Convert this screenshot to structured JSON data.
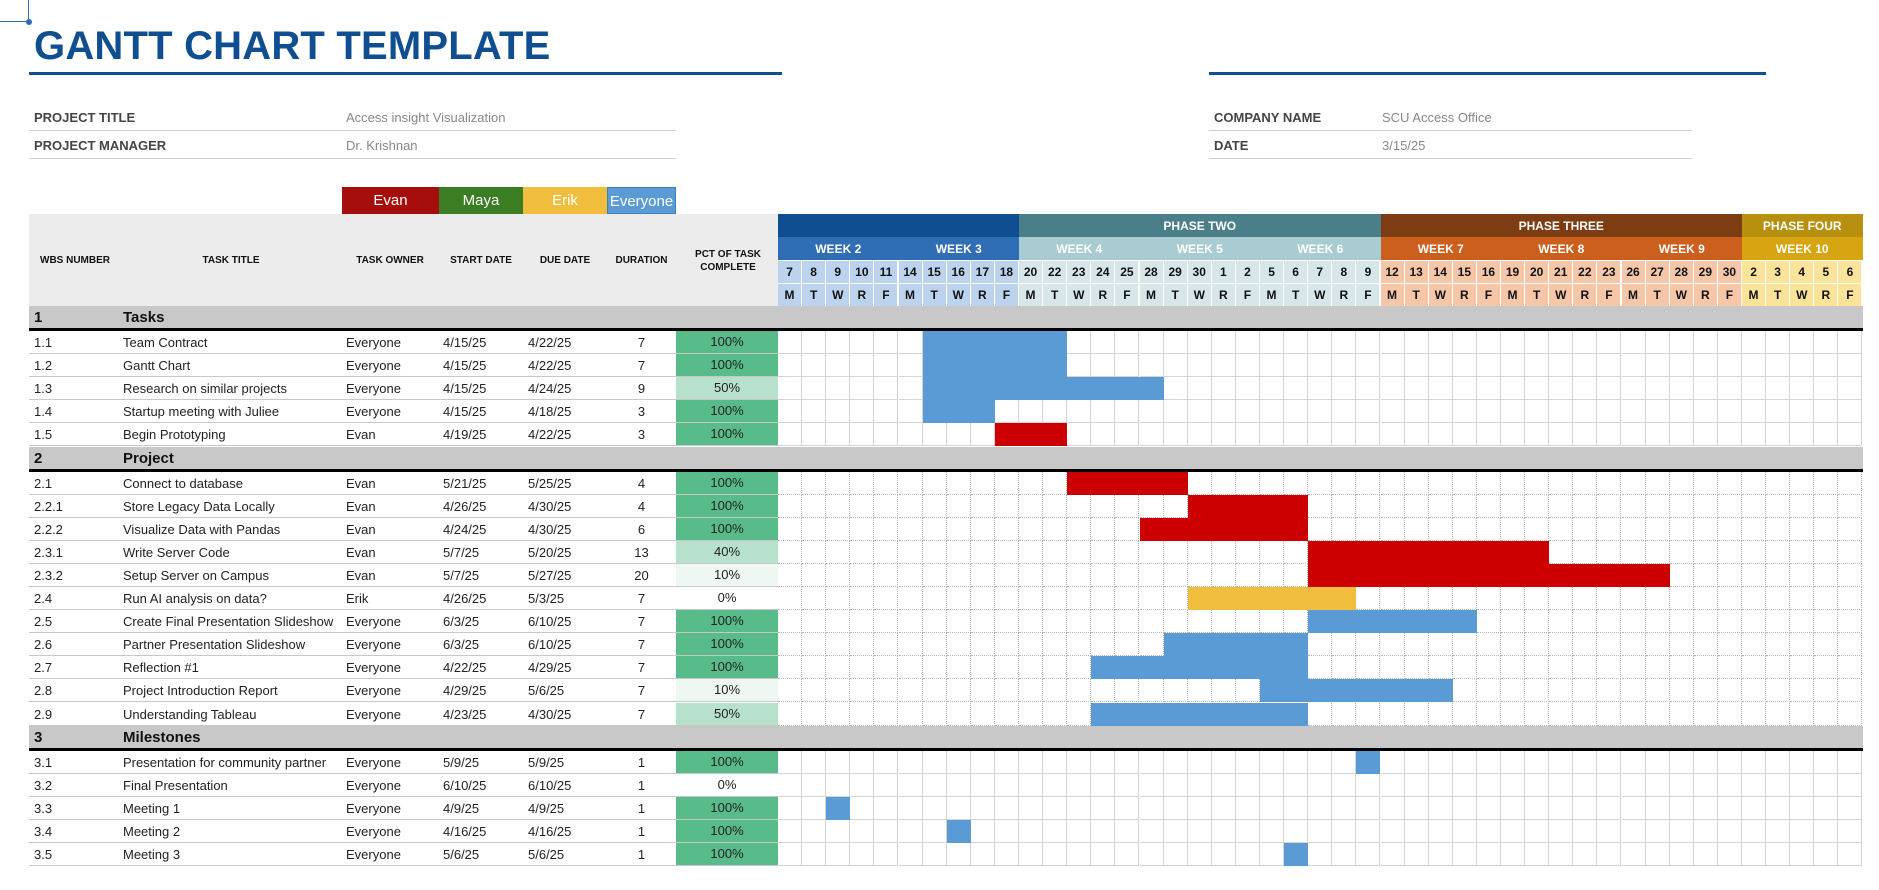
{
  "title": "GANTT CHART TEMPLATE",
  "info_left": [
    {
      "label": "PROJECT TITLE",
      "value": "Access insight Visualization"
    },
    {
      "label": "PROJECT MANAGER",
      "value": "Dr. Krishnan"
    }
  ],
  "info_right": [
    {
      "label": "COMPANY NAME",
      "value": "SCU Access Office"
    },
    {
      "label": "DATE",
      "value": "3/15/25"
    }
  ],
  "legend": [
    {
      "name": "Evan",
      "color": "#a60d0d"
    },
    {
      "name": "Maya",
      "color": "#3a7d22"
    },
    {
      "name": "Erik",
      "color": "#f0be3c"
    },
    {
      "name": "Everyone",
      "color": "#5b9bd5"
    }
  ],
  "headers": {
    "wbs": "WBS NUMBER",
    "task": "TASK TITLE",
    "owner": "TASK OWNER",
    "start": "START DATE",
    "due": "DUE DATE",
    "duration": "DURATION",
    "pct": "PCT OF TASK COMPLETE"
  },
  "phases": [
    {
      "label": "",
      "span": 10,
      "color": "#0f4f91"
    },
    {
      "label": "PHASE TWO",
      "span": 15,
      "color": "#4a7f8a"
    },
    {
      "label": "PHASE THREE",
      "span": 15,
      "color": "#7d3c12"
    },
    {
      "label": "PHASE FOUR",
      "span": 5,
      "color": "#b8900f"
    }
  ],
  "weeks": [
    {
      "label": "WEEK 2",
      "span": 5,
      "color": "#2f6db5",
      "day_color": "#bcd3ee"
    },
    {
      "label": "WEEK 3",
      "span": 5,
      "color": "#2f6db5",
      "day_color": "#bcd3ee"
    },
    {
      "label": "WEEK 4",
      "span": 5,
      "color": "#a9ccd3",
      "day_color": "#d6e6e9"
    },
    {
      "label": "WEEK 5",
      "span": 5,
      "color": "#a9ccd3",
      "day_color": "#d6e6e9"
    },
    {
      "label": "WEEK 6",
      "span": 5,
      "color": "#a9ccd3",
      "day_color": "#d6e6e9"
    },
    {
      "label": "WEEK 7",
      "span": 5,
      "color": "#cc5f1e",
      "day_color": "#f6c6a8"
    },
    {
      "label": "WEEK 8",
      "span": 5,
      "color": "#cc5f1e",
      "day_color": "#f6c6a8"
    },
    {
      "label": "WEEK 9",
      "span": 5,
      "color": "#cc5f1e",
      "day_color": "#f6c6a8"
    },
    {
      "label": "WEEK 10",
      "span": 5,
      "color": "#d6a50f",
      "day_color": "#fbe39a"
    }
  ],
  "day_numbers": [
    "7",
    "8",
    "9",
    "10",
    "11",
    "14",
    "15",
    "16",
    "17",
    "18",
    "20",
    "22",
    "23",
    "24",
    "25",
    "28",
    "29",
    "30",
    "1",
    "2",
    "5",
    "6",
    "7",
    "8",
    "9",
    "12",
    "13",
    "14",
    "15",
    "16",
    "19",
    "20",
    "21",
    "22",
    "23",
    "26",
    "27",
    "28",
    "29",
    "30",
    "2",
    "3",
    "4",
    "5",
    "6"
  ],
  "weekdays": [
    "M",
    "T",
    "W",
    "R",
    "F"
  ],
  "sections": [
    {
      "num": "1",
      "title": "Tasks",
      "dotted": false,
      "tasks": [
        {
          "wbs": "1.1",
          "title": "Team Contract",
          "owner": "Everyone",
          "start": "4/15/25",
          "due": "4/22/25",
          "duration": "7",
          "pct": "100%",
          "pct_value": 1.0,
          "bar": [
            6,
            12
          ],
          "color": "#5b9bd5"
        },
        {
          "wbs": "1.2",
          "title": "Gantt Chart",
          "owner": "Everyone",
          "start": "4/15/25",
          "due": "4/22/25",
          "duration": "7",
          "pct": "100%",
          "pct_value": 1.0,
          "bar": [
            6,
            12
          ],
          "color": "#5b9bd5"
        },
        {
          "wbs": "1.3",
          "title": "Research on similar projects",
          "owner": "Everyone",
          "start": "4/15/25",
          "due": "4/24/25",
          "duration": "9",
          "pct": "50%",
          "pct_value": 0.5,
          "bar": [
            6,
            16
          ],
          "color": "#5b9bd5"
        },
        {
          "wbs": "1.4",
          "title": "Startup meeting with Juliee",
          "owner": "Everyone",
          "start": "4/15/25",
          "due": "4/18/25",
          "duration": "3",
          "pct": "100%",
          "pct_value": 1.0,
          "bar": [
            6,
            9
          ],
          "color": "#5b9bd5"
        },
        {
          "wbs": "1.5",
          "title": "Begin Prototyping",
          "owner": "Evan",
          "start": "4/19/25",
          "due": "4/22/25",
          "duration": "3",
          "pct": "100%",
          "pct_value": 1.0,
          "bar": [
            9,
            12
          ],
          "color": "#cc0000"
        }
      ]
    },
    {
      "num": "2",
      "title": "Project",
      "dotted": true,
      "tasks": [
        {
          "wbs": "2.1",
          "title": "Connect to database",
          "owner": "Evan",
          "start": "5/21/25",
          "due": "5/25/25",
          "duration": "4",
          "pct": "100%",
          "pct_value": 1.0,
          "bar": [
            12,
            17
          ],
          "color": "#cc0000"
        },
        {
          "wbs": "2.2.1",
          "title": "Store Legacy Data Locally",
          "owner": "Evan",
          "start": "4/26/25",
          "due": "4/30/25",
          "duration": "4",
          "pct": "100%",
          "pct_value": 1.0,
          "bar": [
            17,
            22
          ],
          "color": "#cc0000"
        },
        {
          "wbs": "2.2.2",
          "title": "Visualize Data with Pandas",
          "owner": "Evan",
          "start": "4/24/25",
          "due": "4/30/25",
          "duration": "6",
          "pct": "100%",
          "pct_value": 1.0,
          "bar": [
            15,
            22
          ],
          "color": "#cc0000"
        },
        {
          "wbs": "2.3.1",
          "title": "Write Server Code",
          "owner": "Evan",
          "start": "5/7/25",
          "due": "5/20/25",
          "duration": "13",
          "pct": "40%",
          "pct_value": 0.4,
          "bar": [
            22,
            32
          ],
          "color": "#cc0000"
        },
        {
          "wbs": "2.3.2",
          "title": "Setup Server on Campus",
          "owner": "Evan",
          "start": "5/7/25",
          "due": "5/27/25",
          "duration": "20",
          "pct": "10%",
          "pct_value": 0.1,
          "bar": [
            22,
            37
          ],
          "color": "#cc0000"
        },
        {
          "wbs": "2.4",
          "title": "Run AI analysis on data?",
          "owner": "Erik",
          "start": "4/26/25",
          "due": "5/3/25",
          "duration": "7",
          "pct": "0%",
          "pct_value": 0.0,
          "bar": [
            17,
            24
          ],
          "color": "#f0be3c"
        },
        {
          "wbs": "2.5",
          "title": "Create Final Presentation Slideshow",
          "owner": "Everyone",
          "start": "6/3/25",
          "due": "6/10/25",
          "duration": "7",
          "pct": "100%",
          "pct_value": 1.0,
          "bar": [
            22,
            29
          ],
          "color": "#5b9bd5"
        },
        {
          "wbs": "2.6",
          "title": "Partner Presentation Slideshow",
          "owner": "Everyone",
          "start": "6/3/25",
          "due": "6/10/25",
          "duration": "7",
          "pct": "100%",
          "pct_value": 1.0,
          "bar": [
            16,
            22
          ],
          "color": "#5b9bd5"
        },
        {
          "wbs": "2.7",
          "title": "Reflection #1",
          "owner": "Everyone",
          "start": "4/22/25",
          "due": "4/29/25",
          "duration": "7",
          "pct": "100%",
          "pct_value": 1.0,
          "bar": [
            13,
            22
          ],
          "color": "#5b9bd5"
        },
        {
          "wbs": "2.8",
          "title": "Project Introduction Report",
          "owner": "Everyone",
          "start": "4/29/25",
          "due": "5/6/25",
          "duration": "7",
          "pct": "10%",
          "pct_value": 0.1,
          "bar": [
            20,
            28
          ],
          "color": "#5b9bd5"
        },
        {
          "wbs": "2.9",
          "title": "Understanding Tableau",
          "owner": "Everyone",
          "start": "4/23/25",
          "due": "4/30/25",
          "duration": "7",
          "pct": "50%",
          "pct_value": 0.5,
          "bar": [
            13,
            22
          ],
          "color": "#5b9bd5"
        }
      ]
    },
    {
      "num": "3",
      "title": "Milestones",
      "dotted": false,
      "tasks": [
        {
          "wbs": "3.1",
          "title": "Presentation for community partner",
          "owner": "Everyone",
          "start": "5/9/25",
          "due": "5/9/25",
          "duration": "1",
          "pct": "100%",
          "pct_value": 1.0,
          "bar": [
            24,
            25
          ],
          "color": "#5b9bd5"
        },
        {
          "wbs": "3.2",
          "title": "Final Presentation",
          "owner": "Everyone",
          "start": "6/10/25",
          "due": "6/10/25",
          "duration": "1",
          "pct": "0%",
          "pct_value": 0.0,
          "bar": null,
          "color": "#5b9bd5"
        },
        {
          "wbs": "3.3",
          "title": "Meeting 1",
          "owner": "Everyone",
          "start": "4/9/25",
          "due": "4/9/25",
          "duration": "1",
          "pct": "100%",
          "pct_value": 1.0,
          "bar": [
            2,
            3
          ],
          "color": "#5b9bd5"
        },
        {
          "wbs": "3.4",
          "title": "Meeting 2",
          "owner": "Everyone",
          "start": "4/16/25",
          "due": "4/16/25",
          "duration": "1",
          "pct": "100%",
          "pct_value": 1.0,
          "bar": [
            7,
            8
          ],
          "color": "#5b9bd5"
        },
        {
          "wbs": "3.5",
          "title": "Meeting 3",
          "owner": "Everyone",
          "start": "5/6/25",
          "due": "5/6/25",
          "duration": "1",
          "pct": "100%",
          "pct_value": 1.0,
          "bar": [
            21,
            22
          ],
          "color": "#5b9bd5"
        }
      ]
    }
  ]
}
